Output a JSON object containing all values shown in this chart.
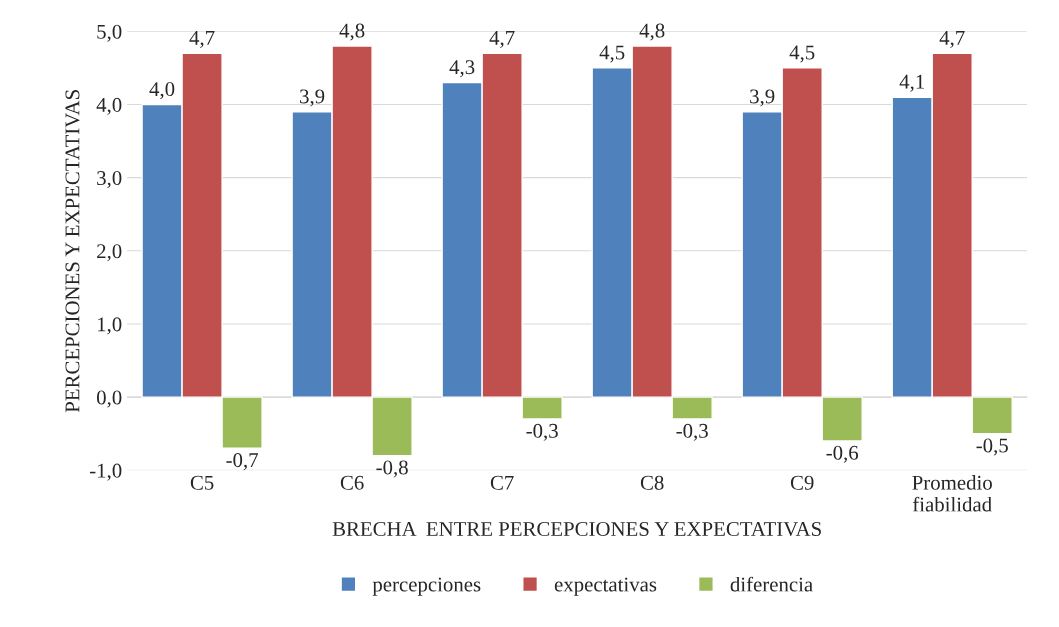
{
  "chart_data": {
    "type": "bar",
    "categories": [
      "C5",
      "C6",
      "C7",
      "C8",
      "C9",
      "Promedio\nfiabilidad"
    ],
    "series": [
      {
        "name": "percepciones",
        "color": "#4f81bd",
        "values": [
          4.0,
          3.9,
          4.3,
          4.5,
          3.9,
          4.1
        ],
        "value_labels": [
          "4,0",
          "3,9",
          "4,3",
          "4,5",
          "3,9",
          "4,1"
        ]
      },
      {
        "name": "expectativas",
        "color": "#c0504d",
        "values": [
          4.7,
          4.8,
          4.7,
          4.8,
          4.5,
          4.7
        ],
        "value_labels": [
          "4,7",
          "4,8",
          "4,7",
          "4,8",
          "4,5",
          "4,7"
        ]
      },
      {
        "name": "diferencia",
        "color": "#9bbb59",
        "values": [
          -0.7,
          -0.8,
          -0.3,
          -0.3,
          -0.6,
          -0.5
        ],
        "value_labels": [
          "-0,7",
          "-0,8",
          "-0,3",
          "-0,3",
          "-0,6",
          "-0,5"
        ]
      }
    ],
    "xlabel": "BRECHA  ENTRE PERCEPCIONES Y EXPECTATIVAS",
    "ylabel": "PERCEPCIONES Y EXPECTATIVAS",
    "ylim": [
      -1,
      5
    ],
    "yticks": [
      {
        "value": -1,
        "label": "-1,0"
      },
      {
        "value": 0,
        "label": "0,0"
      },
      {
        "value": 1,
        "label": "1,0"
      },
      {
        "value": 2,
        "label": "2,0"
      },
      {
        "value": 3,
        "label": "3,0"
      },
      {
        "value": 4,
        "label": "4,0"
      },
      {
        "value": 5,
        "label": "5,0"
      }
    ],
    "grid": "y",
    "legend": "bottom"
  }
}
